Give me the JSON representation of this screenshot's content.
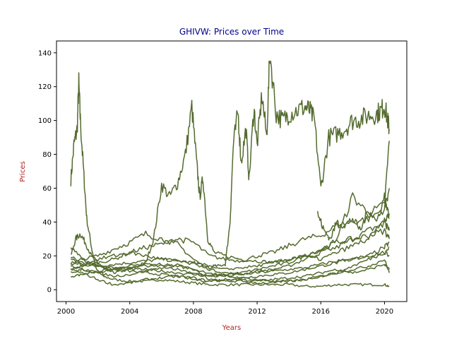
{
  "chart_data": {
    "type": "line",
    "title": "GHIVW: Prices over Time",
    "xlabel": "Years",
    "ylabel": "Prices",
    "title_color": "#00008b",
    "label_color": "#b22222",
    "line_color": "#556b2f",
    "xlim": [
      1999.4,
      2021.4
    ],
    "ylim": [
      -7,
      147
    ],
    "x_ticks": [
      2000,
      2004,
      2008,
      2012,
      2016,
      2020
    ],
    "x_tick_labels": [
      "2000",
      "2004",
      "2008",
      "2012",
      "2016",
      "2020"
    ],
    "y_ticks": [
      0,
      20,
      40,
      60,
      80,
      100,
      120,
      140
    ],
    "y_tick_labels": [
      "0",
      "20",
      "40",
      "60",
      "80",
      "100",
      "120",
      "140"
    ],
    "grid": false,
    "legend": "none",
    "series": [
      {
        "x": [
          2000.3,
          2000.5,
          2000.7,
          2000.8,
          2000.9,
          2001.1,
          2001.3,
          2001.6,
          2001.9,
          2002.3,
          2003,
          2004,
          2005,
          2006,
          2007,
          2008,
          2009,
          2010,
          2011,
          2012,
          2013,
          2014,
          2015,
          2016,
          2017,
          2018,
          2019,
          2020,
          2020.3
        ],
        "values": [
          65,
          86,
          95,
          122,
          100,
          70,
          42,
          25,
          12,
          8,
          6,
          5,
          5,
          6,
          5,
          4,
          3,
          3,
          3,
          3,
          3,
          3,
          2,
          2,
          3,
          3,
          3,
          3,
          2
        ]
      },
      {
        "x": [
          2000.3,
          2000.6,
          2000.9,
          2001.2,
          2001.6,
          2002,
          2002.5,
          2003,
          2003.5,
          2004,
          2004.5,
          2005,
          2005.5,
          2006,
          2006.5,
          2007,
          2007.5,
          2007.9,
          2008.2,
          2008.4,
          2008.6,
          2008.9,
          2009.3,
          2010,
          2011,
          2012,
          2013,
          2014,
          2015,
          2016,
          2017,
          2018,
          2019,
          2020,
          2020.3
        ],
        "values": [
          20,
          30,
          33,
          28,
          20,
          16,
          12,
          10,
          11,
          12,
          14,
          16,
          30,
          62,
          55,
          63,
          80,
          108,
          75,
          55,
          66,
          30,
          22,
          20,
          18,
          17,
          16,
          18,
          20,
          22,
          25,
          30,
          35,
          40,
          45
        ]
      },
      {
        "x": [
          2000.3,
          2001,
          2002,
          2003,
          2004,
          2005,
          2006,
          2007,
          2008,
          2008.5,
          2009,
          2009.5,
          2010,
          2010.3,
          2010.5,
          2010.8,
          2011,
          2011.3,
          2011.5,
          2011.8,
          2012,
          2012.3,
          2012.6,
          2012.8,
          2013.2,
          2013.6,
          2014,
          2014.5,
          2015,
          2015.3,
          2015.6,
          2016,
          2016.5,
          2017,
          2017.5,
          2018,
          2018.5,
          2019,
          2019.5,
          2019.8,
          2020,
          2020.2,
          2020.3
        ],
        "values": [
          18,
          15,
          14,
          15,
          16,
          17,
          18,
          17,
          16,
          15,
          14,
          14,
          15,
          40,
          85,
          105,
          75,
          95,
          65,
          108,
          85,
          115,
          90,
          140,
          104,
          100,
          104,
          106,
          108,
          106,
          100,
          60,
          90,
          92,
          95,
          100,
          101,
          103,
          104,
          106,
          109,
          100,
          95
        ]
      },
      {
        "x": [
          2000.3,
          2001,
          2002,
          2003,
          2004,
          2005,
          2006,
          2007,
          2008,
          2009,
          2010,
          2011,
          2012,
          2013,
          2014,
          2015,
          2016,
          2017,
          2018,
          2019,
          2020,
          2020.3
        ],
        "values": [
          15,
          18,
          20,
          24,
          28,
          33,
          30,
          27,
          18,
          12,
          10,
          9,
          11,
          12,
          14,
          18,
          22,
          30,
          55,
          45,
          50,
          88
        ]
      },
      {
        "x": [
          2000.3,
          2001,
          2002,
          2003,
          2004,
          2005,
          2006,
          2007,
          2008,
          2009,
          2010,
          2011,
          2012,
          2013,
          2014,
          2015,
          2016,
          2017,
          2018,
          2019,
          2020,
          2020.3
        ],
        "values": [
          12,
          14,
          16,
          18,
          22,
          25,
          27,
          30,
          28,
          20,
          18,
          17,
          20,
          22,
          26,
          30,
          32,
          38,
          40,
          42,
          48,
          60
        ]
      },
      {
        "x": [
          2000.3,
          2001,
          2002,
          2003,
          2004,
          2005,
          2006,
          2007,
          2008,
          2009,
          2010,
          2011,
          2012,
          2013,
          2014,
          2015,
          2016,
          2017,
          2018,
          2019,
          2020,
          2020.3
        ],
        "values": [
          10,
          12,
          10,
          12,
          14,
          15,
          14,
          12,
          10,
          8,
          9,
          10,
          12,
          14,
          16,
          20,
          24,
          28,
          30,
          32,
          35,
          30
        ]
      },
      {
        "x": [
          2000.3,
          2001,
          2002,
          2003,
          2004,
          2005,
          2006,
          2007,
          2008,
          2009,
          2010,
          2011,
          2012,
          2013,
          2014,
          2015,
          2016,
          2017,
          2018,
          2019,
          2020,
          2020.3
        ],
        "values": [
          8,
          9,
          11,
          12,
          11,
          10,
          9,
          8,
          6,
          5,
          6,
          7,
          8,
          9,
          10,
          12,
          14,
          16,
          18,
          20,
          22,
          20
        ]
      },
      {
        "x": [
          2000.3,
          2001,
          2002,
          2003,
          2004,
          2005,
          2006,
          2007,
          2008,
          2009,
          2010,
          2011,
          2012,
          2013,
          2014,
          2015,
          2016,
          2017,
          2018,
          2019,
          2020,
          2020.3
        ],
        "values": [
          20,
          16,
          14,
          13,
          12,
          12,
          11,
          10,
          9,
          8,
          8,
          9,
          10,
          11,
          12,
          13,
          15,
          17,
          18,
          20,
          25,
          28
        ]
      },
      {
        "x": [
          2000.3,
          2001,
          2002,
          2003,
          2004,
          2005,
          2006,
          2007,
          2008,
          2009,
          2010,
          2011,
          2012,
          2013,
          2014,
          2015,
          2016,
          2017,
          2018,
          2019,
          2020,
          2020.3
        ],
        "values": [
          12,
          10,
          6,
          3,
          4,
          6,
          7,
          8,
          7,
          5,
          6,
          6,
          5,
          6,
          7,
          8,
          10,
          12,
          10,
          12,
          15,
          12
        ]
      },
      {
        "x": [
          2000.3,
          2001,
          2002,
          2003,
          2004,
          2005,
          2006,
          2007,
          2008,
          2009,
          2010,
          2011,
          2012,
          2013,
          2014,
          2015,
          2016,
          2017,
          2018,
          2019,
          2020,
          2020.3
        ],
        "values": [
          25,
          18,
          14,
          12,
          13,
          14,
          15,
          14,
          12,
          10,
          8,
          7,
          6,
          5,
          5,
          6,
          8,
          10,
          12,
          14,
          18,
          10
        ]
      },
      {
        "x": [
          2000.3,
          2001,
          2002,
          2003,
          2004,
          2005,
          2006,
          2007,
          2008,
          2009,
          2010,
          2011,
          2012,
          2013,
          2014,
          2015,
          2016,
          2017,
          2018,
          2019,
          2020,
          2020.3
        ],
        "values": [
          14,
          12,
          10,
          8,
          9,
          11,
          13,
          15,
          12,
          6,
          5,
          5,
          4,
          4,
          5,
          6,
          8,
          10,
          14,
          18,
          22,
          25
        ]
      },
      {
        "x": [
          2015.8,
          2016.2,
          2016.6,
          2017,
          2017.5,
          2018,
          2018.5,
          2019,
          2019.5,
          2020,
          2020.3
        ],
        "values": [
          45,
          35,
          30,
          40,
          38,
          42,
          35,
          48,
          40,
          55,
          42
        ]
      },
      {
        "x": [
          2000.3,
          2001,
          2002,
          2003,
          2004,
          2005,
          2006,
          2007,
          2008,
          2009,
          2010,
          2011,
          2012,
          2013,
          2014,
          2015,
          2016,
          2017,
          2018,
          2019,
          2020,
          2020.3
        ],
        "values": [
          16,
          15,
          18,
          20,
          22,
          20,
          18,
          17,
          15,
          13,
          12,
          13,
          14,
          16,
          18,
          20,
          18,
          22,
          26,
          30,
          40,
          35
        ]
      }
    ]
  }
}
